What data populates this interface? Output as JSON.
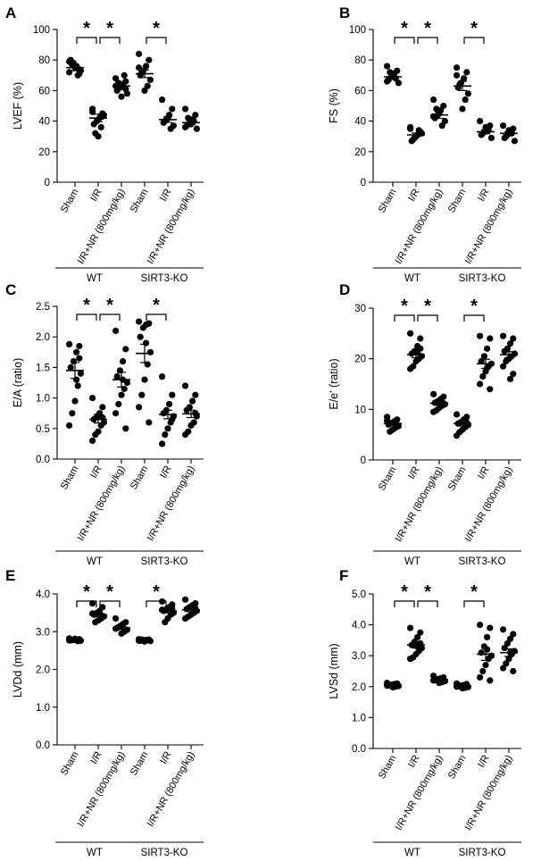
{
  "chart_data": [
    {
      "panel": "A",
      "type": "scatter",
      "ylabel": "LVEF (%)",
      "ylim": [
        0,
        100
      ],
      "yticks": [
        0,
        20,
        40,
        60,
        80,
        100
      ],
      "yticklabels": [
        "0",
        "20",
        "40",
        "60",
        "80",
        "100"
      ],
      "categories": [
        "Sham",
        "I/R",
        "I/R+NR (800mg/kg)",
        "Sham",
        "I/R",
        "I/R+NR (800mg/kg)"
      ],
      "groups": [
        {
          "label": "WT",
          "start": 0,
          "end": 2
        },
        {
          "label": "SIRT3-KO",
          "start": 3,
          "end": 5
        }
      ],
      "means": [
        75,
        42,
        63,
        71,
        41,
        39
      ],
      "sems": [
        2,
        2.5,
        2.2,
        2.5,
        1.8,
        1.3
      ],
      "points": [
        [
          72,
          74,
          76,
          78,
          80,
          73,
          70,
          75,
          77,
          79,
          71
        ],
        [
          48,
          45,
          42,
          40,
          38,
          44,
          36,
          30,
          32,
          46,
          43
        ],
        [
          68,
          66,
          64,
          62,
          60,
          58,
          70,
          56,
          65,
          63,
          61
        ],
        [
          84,
          80,
          76,
          73,
          70,
          67,
          63,
          60,
          72,
          75
        ],
        [
          54,
          48,
          44,
          41,
          39,
          37,
          35,
          42,
          40
        ],
        [
          48,
          44,
          41,
          39,
          37,
          35,
          40,
          38,
          42,
          36
        ]
      ],
      "significance": [
        {
          "from": 0,
          "to": 1,
          "label": "*"
        },
        {
          "from": 1,
          "to": 2,
          "label": "*"
        },
        {
          "from": 3,
          "to": 4,
          "label": "*"
        }
      ]
    },
    {
      "panel": "B",
      "type": "scatter",
      "ylabel": "FS (%)",
      "ylim": [
        0,
        100
      ],
      "yticks": [
        0,
        20,
        40,
        60,
        80,
        100
      ],
      "yticklabels": [
        "0",
        "20",
        "40",
        "60",
        "80",
        "100"
      ],
      "categories": [
        "Sham",
        "I/R",
        "I/R+NR (800mg/kg)",
        "Sham",
        "I/R",
        "I/R+NR (800mg/kg)"
      ],
      "groups": [
        {
          "label": "WT",
          "start": 0,
          "end": 2
        },
        {
          "label": "SIRT3-KO",
          "start": 3,
          "end": 5
        }
      ],
      "means": [
        69,
        31,
        44,
        63,
        33,
        32
      ],
      "sems": [
        1.5,
        1.2,
        2.2,
        3,
        1.3,
        1
      ],
      "points": [
        [
          76,
          73,
          71,
          69,
          67,
          65,
          68,
          70,
          72,
          66
        ],
        [
          35,
          33,
          31,
          29,
          27,
          32,
          34,
          30,
          28,
          36
        ],
        [
          54,
          50,
          47,
          44,
          42,
          40,
          37,
          45,
          48,
          43
        ],
        [
          75,
          72,
          68,
          65,
          62,
          58,
          54,
          48,
          64,
          70
        ],
        [
          40,
          37,
          35,
          33,
          31,
          29,
          34,
          36,
          32
        ],
        [
          37,
          35,
          33,
          31,
          29,
          27,
          32,
          34,
          30
        ]
      ],
      "significance": [
        {
          "from": 0,
          "to": 1,
          "label": "*"
        },
        {
          "from": 1,
          "to": 2,
          "label": "*"
        },
        {
          "from": 3,
          "to": 4,
          "label": "*"
        }
      ]
    },
    {
      "panel": "C",
      "type": "scatter",
      "ylabel": "E/A (ratio)",
      "ylim": [
        0,
        2.5
      ],
      "yticks": [
        0,
        0.5,
        1.0,
        1.5,
        2.0,
        2.5
      ],
      "yticklabels": [
        "0.0",
        "0.5",
        "1.0",
        "1.5",
        "2.0",
        "2.5"
      ],
      "categories": [
        "Sham",
        "I/R",
        "I/R+NR (800mg/kg)",
        "Sham",
        "I/R",
        "I/R+NR (800mg/kg)"
      ],
      "groups": [
        {
          "label": "WT",
          "start": 0,
          "end": 2
        },
        {
          "label": "SIRT3-KO",
          "start": 3,
          "end": 5
        }
      ],
      "means": [
        1.45,
        0.65,
        1.3,
        1.73,
        0.73,
        0.74
      ],
      "sems": [
        0.13,
        0.06,
        0.12,
        0.15,
        0.07,
        0.06
      ],
      "points": [
        [
          1.88,
          1.85,
          1.75,
          1.6,
          1.5,
          1.4,
          1.2,
          0.95,
          0.75,
          0.55,
          1.65,
          1.3
        ],
        [
          1.0,
          0.85,
          0.75,
          0.7,
          0.65,
          0.6,
          0.55,
          0.45,
          0.4,
          0.3,
          0.68
        ],
        [
          2.1,
          1.8,
          1.6,
          1.45,
          1.35,
          1.25,
          1.15,
          1.05,
          0.9,
          0.75,
          0.5,
          1.3
        ],
        [
          2.25,
          2.22,
          2.2,
          2.15,
          2.0,
          1.75,
          1.55,
          1.3,
          1.05,
          0.85,
          0.6,
          1.9
        ],
        [
          1.35,
          1.05,
          0.9,
          0.8,
          0.75,
          0.7,
          0.6,
          0.5,
          0.4,
          0.25,
          0.65
        ],
        [
          1.2,
          1.05,
          0.95,
          0.85,
          0.8,
          0.7,
          0.6,
          0.55,
          0.45,
          0.4,
          0.75
        ]
      ],
      "significance": [
        {
          "from": 0,
          "to": 1,
          "label": "*"
        },
        {
          "from": 1,
          "to": 2,
          "label": "*"
        },
        {
          "from": 3,
          "to": 4,
          "label": "*"
        }
      ]
    },
    {
      "panel": "D",
      "type": "scatter",
      "ylabel": "E/e' (ratio)",
      "ylim": [
        0,
        30
      ],
      "yticks": [
        0,
        10,
        20,
        30
      ],
      "yticklabels": [
        "0",
        "10",
        "20",
        "30"
      ],
      "categories": [
        "Sham",
        "I/R",
        "I/R+NR (800mg/kg)",
        "Sham",
        "I/R",
        "I/R+NR (800mg/kg)"
      ],
      "groups": [
        {
          "label": "WT",
          "start": 0,
          "end": 2
        },
        {
          "label": "SIRT3-KO",
          "start": 3,
          "end": 5
        }
      ],
      "means": [
        7.2,
        20.8,
        11.2,
        7.2,
        19,
        20.8
      ],
      "sems": [
        0.4,
        0.6,
        0.3,
        0.5,
        0.9,
        0.6
      ],
      "points": [
        [
          8.5,
          8.0,
          7.6,
          7.3,
          7.0,
          6.7,
          6.4,
          6.0,
          5.6,
          7.8,
          6.9
        ],
        [
          25,
          24,
          22.5,
          21.5,
          21,
          20.5,
          20,
          19.5,
          18.5,
          18,
          22,
          21.3
        ],
        [
          13,
          12.5,
          12,
          11.6,
          11.3,
          11,
          10.7,
          10.3,
          9.8,
          9.5,
          11.2
        ],
        [
          9.0,
          8.5,
          8.0,
          7.5,
          7.2,
          6.9,
          6.5,
          6.0,
          5.5,
          4.8,
          7.4
        ],
        [
          24.5,
          24,
          22,
          20.5,
          19.5,
          19,
          18.5,
          17.5,
          16.5,
          15,
          14,
          18.2
        ],
        [
          24.5,
          24,
          23,
          22,
          21.5,
          21,
          20.5,
          20,
          19.5,
          18.5,
          17,
          16
        ]
      ],
      "significance": [
        {
          "from": 0,
          "to": 1,
          "label": "*"
        },
        {
          "from": 1,
          "to": 2,
          "label": "*"
        },
        {
          "from": 3,
          "to": 4,
          "label": "*"
        }
      ]
    },
    {
      "panel": "E",
      "type": "scatter",
      "ylabel": "LVDd (mm)",
      "ylim": [
        0,
        4
      ],
      "yticks": [
        0,
        1,
        2,
        3,
        4
      ],
      "yticklabels": [
        "0.0",
        "1.0",
        "2.0",
        "3.0",
        "4.0"
      ],
      "categories": [
        "Sham",
        "I/R",
        "I/R+NR (800mg/kg)",
        "Sham",
        "I/R",
        "I/R+NR (800mg/kg)"
      ],
      "groups": [
        {
          "label": "WT",
          "start": 0,
          "end": 2
        },
        {
          "label": "SIRT3-KO",
          "start": 3,
          "end": 5
        }
      ],
      "means": [
        2.78,
        3.45,
        3.1,
        2.77,
        3.55,
        3.58
      ],
      "sems": [
        0.02,
        0.05,
        0.04,
        0.02,
        0.05,
        0.05
      ],
      "points": [
        [
          2.82,
          2.8,
          2.79,
          2.78,
          2.77,
          2.76,
          2.75,
          2.81,
          2.78,
          2.77
        ],
        [
          3.75,
          3.65,
          3.55,
          3.5,
          3.45,
          3.4,
          3.35,
          3.3,
          3.25,
          3.48,
          3.42
        ],
        [
          3.35,
          3.25,
          3.2,
          3.15,
          3.1,
          3.05,
          3.0,
          2.95,
          3.12,
          3.08
        ],
        [
          2.8,
          2.79,
          2.78,
          2.77,
          2.76,
          2.75,
          2.78,
          2.74,
          2.79,
          2.76
        ],
        [
          3.8,
          3.72,
          3.65,
          3.6,
          3.55,
          3.5,
          3.45,
          3.35,
          3.25,
          3.58,
          3.62
        ],
        [
          3.85,
          3.75,
          3.7,
          3.65,
          3.6,
          3.55,
          3.5,
          3.45,
          3.4,
          3.35,
          3.62
        ]
      ],
      "significance": [
        {
          "from": 0,
          "to": 1,
          "label": "*"
        },
        {
          "from": 1,
          "to": 2,
          "label": "*"
        },
        {
          "from": 3,
          "to": 4,
          "label": "*"
        }
      ]
    },
    {
      "panel": "F",
      "type": "scatter",
      "ylabel": "LVSd (mm)",
      "ylim": [
        0,
        5
      ],
      "yticks": [
        0,
        1,
        2,
        3,
        4,
        5
      ],
      "yticklabels": [
        "0.0",
        "1.0",
        "2.0",
        "3.0",
        "4.0",
        "5.0"
      ],
      "categories": [
        "Sham",
        "I/R",
        "I/R+NR (800mg/kg)",
        "Sham",
        "I/R",
        "I/R+NR (800mg/kg)"
      ],
      "groups": [
        {
          "label": "WT",
          "start": 0,
          "end": 2
        },
        {
          "label": "SIRT3-KO",
          "start": 3,
          "end": 5
        }
      ],
      "means": [
        2.05,
        3.35,
        2.22,
        2.02,
        3.05,
        3.1
      ],
      "sems": [
        0.02,
        0.1,
        0.03,
        0.02,
        0.2,
        0.12
      ],
      "points": [
        [
          2.12,
          2.1,
          2.08,
          2.06,
          2.04,
          2.02,
          2.0,
          1.98,
          2.05,
          2.03
        ],
        [
          3.9,
          3.75,
          3.6,
          3.45,
          3.35,
          3.25,
          3.15,
          3.05,
          2.95,
          2.9,
          3.4,
          3.3
        ],
        [
          2.35,
          2.3,
          2.27,
          2.24,
          2.21,
          2.18,
          2.15,
          2.12,
          2.22,
          2.2
        ],
        [
          2.1,
          2.08,
          2.05,
          2.03,
          2.01,
          1.99,
          1.97,
          1.95,
          2.02,
          2.0
        ],
        [
          4.0,
          3.9,
          3.6,
          3.3,
          3.1,
          3.0,
          2.9,
          2.7,
          2.5,
          2.3,
          2.2,
          3.2
        ],
        [
          3.85,
          3.7,
          3.55,
          3.4,
          3.25,
          3.15,
          3.05,
          2.9,
          2.75,
          2.6,
          2.5,
          3.1
        ]
      ],
      "significance": [
        {
          "from": 0,
          "to": 1,
          "label": "*"
        },
        {
          "from": 1,
          "to": 2,
          "label": "*"
        },
        {
          "from": 3,
          "to": 4,
          "label": "*"
        }
      ]
    }
  ]
}
